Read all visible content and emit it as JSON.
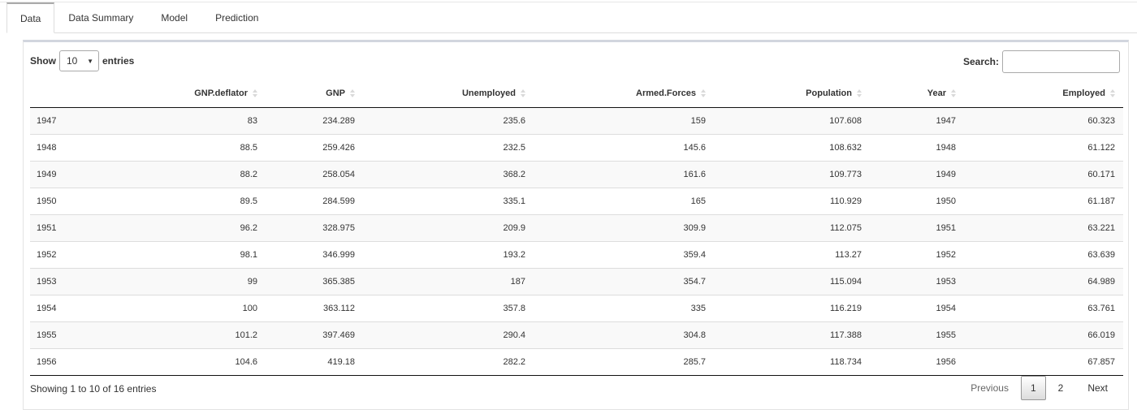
{
  "tabs": [
    {
      "label": "Data",
      "active": true
    },
    {
      "label": "Data Summary",
      "active": false
    },
    {
      "label": "Model",
      "active": false
    },
    {
      "label": "Prediction",
      "active": false
    }
  ],
  "length": {
    "show_label": "Show",
    "selected": "10",
    "entries_label": "entries"
  },
  "search": {
    "label": "Search:",
    "value": ""
  },
  "table": {
    "headers": [
      "",
      "GNP.deflator",
      "GNP",
      "Unemployed",
      "Armed.Forces",
      "Population",
      "Year",
      "Employed"
    ],
    "rows": [
      [
        "1947",
        "83",
        "234.289",
        "235.6",
        "159",
        "107.608",
        "1947",
        "60.323"
      ],
      [
        "1948",
        "88.5",
        "259.426",
        "232.5",
        "145.6",
        "108.632",
        "1948",
        "61.122"
      ],
      [
        "1949",
        "88.2",
        "258.054",
        "368.2",
        "161.6",
        "109.773",
        "1949",
        "60.171"
      ],
      [
        "1950",
        "89.5",
        "284.599",
        "335.1",
        "165",
        "110.929",
        "1950",
        "61.187"
      ],
      [
        "1951",
        "96.2",
        "328.975",
        "209.9",
        "309.9",
        "112.075",
        "1951",
        "63.221"
      ],
      [
        "1952",
        "98.1",
        "346.999",
        "193.2",
        "359.4",
        "113.27",
        "1952",
        "63.639"
      ],
      [
        "1953",
        "99",
        "365.385",
        "187",
        "354.7",
        "115.094",
        "1953",
        "64.989"
      ],
      [
        "1954",
        "100",
        "363.112",
        "357.8",
        "335",
        "116.219",
        "1954",
        "63.761"
      ],
      [
        "1955",
        "101.2",
        "397.469",
        "290.4",
        "304.8",
        "117.388",
        "1955",
        "66.019"
      ],
      [
        "1956",
        "104.6",
        "419.18",
        "282.2",
        "285.7",
        "118.734",
        "1956",
        "67.857"
      ]
    ]
  },
  "info": "Showing 1 to 10 of 16 entries",
  "pagination": {
    "previous": "Previous",
    "pages": [
      "1",
      "2"
    ],
    "current": "1",
    "next": "Next"
  }
}
